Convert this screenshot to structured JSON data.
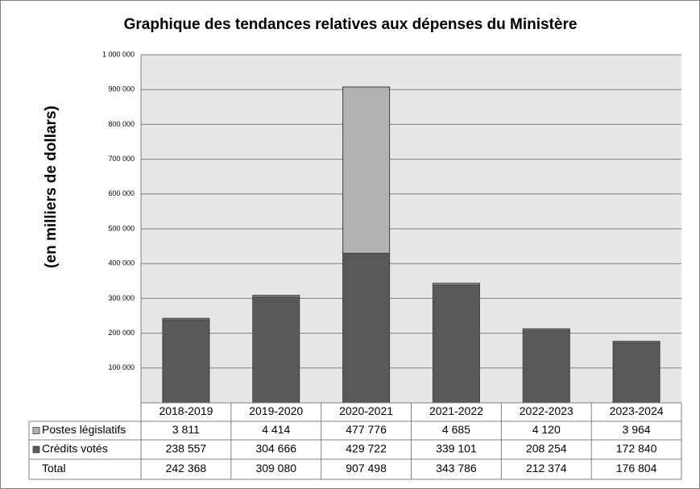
{
  "chart_data": {
    "type": "stacked-bar",
    "title": "Graphique des tendances relatives aux dépenses du Ministère",
    "y_label": "(en milliers  de dollars)",
    "categories": [
      "2018-2019",
      "2019-2020",
      "2020-2021",
      "2021-2022",
      "2022-2023",
      "2023-2024"
    ],
    "series": [
      {
        "name": "Crédits votés",
        "color": "#595959",
        "values": [
          238557,
          304666,
          429722,
          339101,
          208254,
          172840
        ],
        "value_labels": [
          "238 557",
          "304 666",
          "429 722",
          "339 101",
          "208 254",
          "172 840"
        ]
      },
      {
        "name": "Postes législatifs",
        "color": "#b2b2b2",
        "values": [
          3811,
          4414,
          477776,
          4685,
          4120,
          3964
        ],
        "value_labels": [
          "3 811",
          "4 414",
          "477 776",
          "4 685",
          "4 120",
          "3 964"
        ]
      }
    ],
    "total": {
      "name": "Total",
      "values": [
        242368,
        309080,
        907498,
        343786,
        212374,
        176804
      ],
      "value_labels": [
        "242 368",
        "309 080",
        "907 498",
        "343 786",
        "212 374",
        "176 804"
      ]
    },
    "ylim": [
      0,
      1000000
    ],
    "yticks": [
      {
        "value": 100000,
        "label": "100 000"
      },
      {
        "value": 200000,
        "label": "200 000"
      },
      {
        "value": 300000,
        "label": "300 000"
      },
      {
        "value": 400000,
        "label": "400 000"
      },
      {
        "value": 500000,
        "label": "500 000"
      },
      {
        "value": 600000,
        "label": "600 000"
      },
      {
        "value": 700000,
        "label": "700 000"
      },
      {
        "value": 800000,
        "label": "800 000"
      },
      {
        "value": 900000,
        "label": "900 000"
      },
      {
        "value": 1000000,
        "label": "1 000 000"
      }
    ],
    "grid": true
  }
}
